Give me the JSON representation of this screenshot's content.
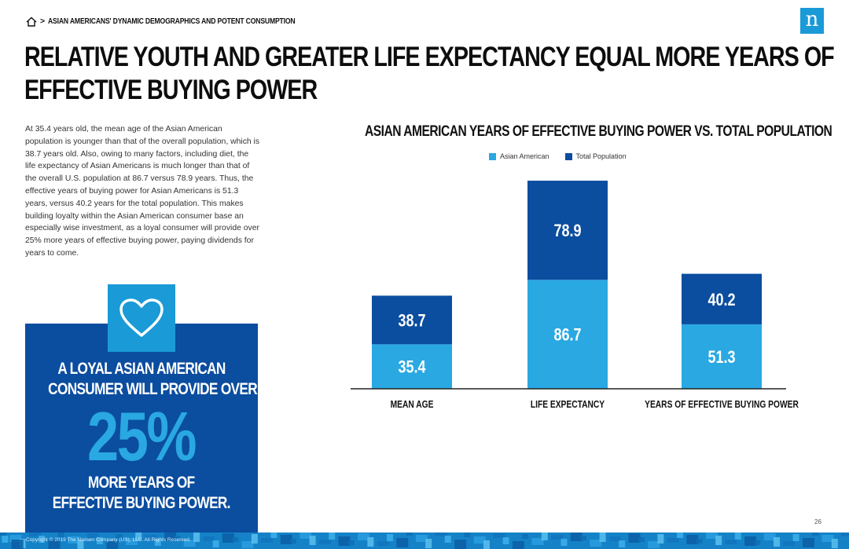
{
  "breadcrumb": {
    "separator": ">",
    "text": "ASIAN AMERICANS' DYNAMIC DEMOGRAPHICS AND POTENT CONSUMPTION"
  },
  "logo": {
    "letter": "n"
  },
  "title": {
    "line1": "RELATIVE YOUTH AND GREATER LIFE EXPECTANCY EQUAL MORE YEARS OF",
    "line2": "EFFECTIVE BUYING POWER"
  },
  "body_text": "At 35.4 years old, the mean age of the Asian American population is younger than that of the overall population, which is 38.7 years old. Also, owing to many factors, including diet, the life expectancy of Asian Americans is much longer than that of the overall U.S. population at 86.7 versus 78.9 years. Thus, the effective years of buying power for Asian Americans is 51.3 years, versus 40.2 years for the total population. This makes building loyalty within the Asian American consumer base an especially wise investment, as a loyal consumer will provide over 25% more years of effective buying power, paying dividends for years to come.",
  "callout": {
    "line1": "A LOYAL ASIAN AMERICAN",
    "line2": "CONSUMER WILL PROVIDE OVER",
    "big": "25%",
    "line3": "MORE YEARS OF",
    "line4": "EFFECTIVE BUYING POWER."
  },
  "footer": {
    "copyright": "Copyright © 2019 The Nielsen Company (US), LLC. All Rights Reserved.",
    "page_number": "26"
  },
  "colors": {
    "asian": "#29a8e2",
    "total": "#0b4d9f",
    "callout_bg": "#0b4d9f",
    "accent": "#1a9ad6"
  },
  "chart_data": {
    "type": "bar",
    "title": "ASIAN AMERICAN YEARS OF EFFECTIVE BUYING POWER VS. TOTAL POPULATION",
    "categories": [
      "MEAN AGE",
      "LIFE EXPECTANCY",
      "YEARS OF EFFECTIVE BUYING POWER"
    ],
    "series": [
      {
        "name": "Asian American",
        "values": [
          35.4,
          86.7,
          51.3
        ]
      },
      {
        "name": "Total Population",
        "values": [
          38.7,
          78.9,
          40.2
        ]
      }
    ],
    "stacked": true,
    "legend": "top-center"
  }
}
